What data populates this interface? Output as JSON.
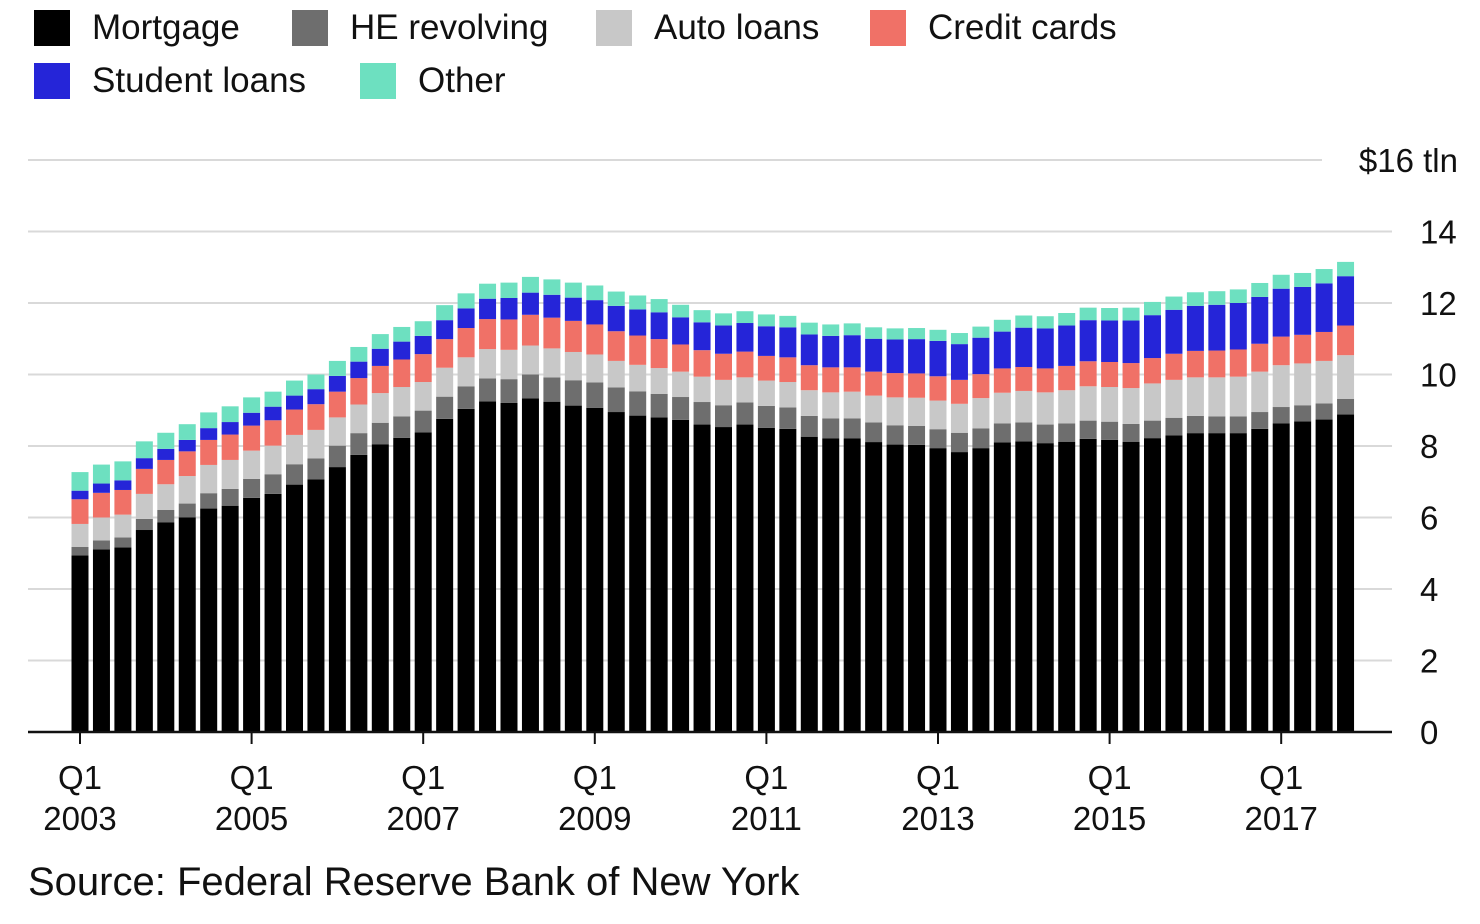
{
  "chart_data": {
    "type": "bar",
    "stacked": true,
    "ylabel_unit": "$16 tln",
    "ylim": [
      0,
      16
    ],
    "yticks": [
      0,
      2,
      4,
      6,
      8,
      10,
      12,
      14,
      16
    ],
    "ytick_labels": [
      "0",
      "2",
      "4",
      "6",
      "8",
      "10",
      "12",
      "14",
      "$16 tln"
    ],
    "xtick_labels": [
      {
        "index": 0,
        "top": "Q1",
        "bottom": "2003"
      },
      {
        "index": 8,
        "top": "Q1",
        "bottom": "2005"
      },
      {
        "index": 16,
        "top": "Q1",
        "bottom": "2007"
      },
      {
        "index": 24,
        "top": "Q1",
        "bottom": "2009"
      },
      {
        "index": 32,
        "top": "Q1",
        "bottom": "2011"
      },
      {
        "index": 40,
        "top": "Q1",
        "bottom": "2013"
      },
      {
        "index": 48,
        "top": "Q1",
        "bottom": "2015"
      },
      {
        "index": 56,
        "top": "Q1",
        "bottom": "2017"
      }
    ],
    "categories": [
      "2003 Q1",
      "2003 Q2",
      "2003 Q3",
      "2003 Q4",
      "2004 Q1",
      "2004 Q2",
      "2004 Q3",
      "2004 Q4",
      "2005 Q1",
      "2005 Q2",
      "2005 Q3",
      "2005 Q4",
      "2006 Q1",
      "2006 Q2",
      "2006 Q3",
      "2006 Q4",
      "2007 Q1",
      "2007 Q2",
      "2007 Q3",
      "2007 Q4",
      "2008 Q1",
      "2008 Q2",
      "2008 Q3",
      "2008 Q4",
      "2009 Q1",
      "2009 Q2",
      "2009 Q3",
      "2009 Q4",
      "2010 Q1",
      "2010 Q2",
      "2010 Q3",
      "2010 Q4",
      "2011 Q1",
      "2011 Q2",
      "2011 Q3",
      "2011 Q4",
      "2012 Q1",
      "2012 Q2",
      "2012 Q3",
      "2012 Q4",
      "2013 Q1",
      "2013 Q2",
      "2013 Q3",
      "2013 Q4",
      "2014 Q1",
      "2014 Q2",
      "2014 Q3",
      "2014 Q4",
      "2015 Q1",
      "2015 Q2",
      "2015 Q3",
      "2015 Q4",
      "2016 Q1",
      "2016 Q2",
      "2016 Q3",
      "2016 Q4",
      "2017 Q1",
      "2017 Q2",
      "2017 Q3",
      "2017 Q4"
    ],
    "series": [
      {
        "name": "Mortgage",
        "color": "#000000",
        "values": [
          4.94,
          5.11,
          5.16,
          5.65,
          5.86,
          6.0,
          6.25,
          6.33,
          6.55,
          6.66,
          6.92,
          7.07,
          7.41,
          7.75,
          8.05,
          8.23,
          8.38,
          8.76,
          9.04,
          9.25,
          9.21,
          9.33,
          9.24,
          9.13,
          9.07,
          8.95,
          8.85,
          8.8,
          8.73,
          8.6,
          8.53,
          8.6,
          8.51,
          8.48,
          8.26,
          8.21,
          8.21,
          8.11,
          8.04,
          8.03,
          7.94,
          7.83,
          7.94,
          8.1,
          8.13,
          8.08,
          8.12,
          8.2,
          8.17,
          8.12,
          8.22,
          8.3,
          8.36,
          8.36,
          8.36,
          8.48,
          8.63,
          8.69,
          8.74,
          8.88
        ]
      },
      {
        "name": "HE revolving",
        "color": "#6e6e6e",
        "values": [
          0.24,
          0.25,
          0.28,
          0.31,
          0.35,
          0.39,
          0.43,
          0.47,
          0.53,
          0.55,
          0.57,
          0.58,
          0.6,
          0.61,
          0.6,
          0.6,
          0.61,
          0.62,
          0.63,
          0.64,
          0.66,
          0.67,
          0.68,
          0.71,
          0.71,
          0.69,
          0.68,
          0.66,
          0.64,
          0.63,
          0.61,
          0.62,
          0.61,
          0.6,
          0.58,
          0.56,
          0.56,
          0.55,
          0.54,
          0.53,
          0.53,
          0.54,
          0.55,
          0.53,
          0.53,
          0.52,
          0.51,
          0.51,
          0.51,
          0.5,
          0.49,
          0.49,
          0.48,
          0.47,
          0.47,
          0.47,
          0.46,
          0.45,
          0.45,
          0.44
        ]
      },
      {
        "name": "Auto loans",
        "color": "#c8c8c8",
        "values": [
          0.64,
          0.64,
          0.64,
          0.7,
          0.72,
          0.77,
          0.79,
          0.81,
          0.79,
          0.8,
          0.82,
          0.8,
          0.79,
          0.8,
          0.83,
          0.82,
          0.8,
          0.81,
          0.81,
          0.82,
          0.82,
          0.81,
          0.81,
          0.79,
          0.78,
          0.74,
          0.74,
          0.72,
          0.71,
          0.71,
          0.71,
          0.7,
          0.71,
          0.71,
          0.72,
          0.73,
          0.75,
          0.75,
          0.78,
          0.79,
          0.8,
          0.81,
          0.85,
          0.86,
          0.88,
          0.9,
          0.93,
          0.96,
          0.97,
          1.0,
          1.04,
          1.06,
          1.08,
          1.09,
          1.11,
          1.13,
          1.17,
          1.17,
          1.19,
          1.22
        ]
      },
      {
        "name": "Credit cards",
        "color": "#f07167",
        "values": [
          0.69,
          0.69,
          0.69,
          0.7,
          0.68,
          0.69,
          0.7,
          0.71,
          0.7,
          0.71,
          0.71,
          0.72,
          0.72,
          0.74,
          0.76,
          0.77,
          0.78,
          0.8,
          0.82,
          0.84,
          0.85,
          0.86,
          0.86,
          0.87,
          0.84,
          0.83,
          0.82,
          0.81,
          0.76,
          0.74,
          0.73,
          0.72,
          0.69,
          0.69,
          0.7,
          0.7,
          0.68,
          0.67,
          0.68,
          0.68,
          0.68,
          0.67,
          0.67,
          0.68,
          0.67,
          0.67,
          0.68,
          0.7,
          0.7,
          0.7,
          0.71,
          0.73,
          0.74,
          0.75,
          0.76,
          0.78,
          0.8,
          0.8,
          0.81,
          0.83
        ]
      },
      {
        "name": "Student loans",
        "color": "#2525d8",
        "values": [
          0.24,
          0.26,
          0.27,
          0.3,
          0.31,
          0.32,
          0.33,
          0.35,
          0.36,
          0.38,
          0.39,
          0.42,
          0.44,
          0.46,
          0.48,
          0.5,
          0.51,
          0.53,
          0.55,
          0.57,
          0.6,
          0.62,
          0.64,
          0.65,
          0.68,
          0.71,
          0.73,
          0.75,
          0.76,
          0.78,
          0.79,
          0.8,
          0.83,
          0.84,
          0.86,
          0.88,
          0.9,
          0.92,
          0.94,
          0.96,
          0.99,
          1.0,
          1.02,
          1.03,
          1.1,
          1.12,
          1.13,
          1.15,
          1.16,
          1.19,
          1.2,
          1.23,
          1.26,
          1.28,
          1.3,
          1.31,
          1.34,
          1.34,
          1.36,
          1.38
        ]
      },
      {
        "name": "Other",
        "color": "#6de0c0",
        "values": [
          0.52,
          0.53,
          0.53,
          0.47,
          0.45,
          0.44,
          0.44,
          0.44,
          0.43,
          0.42,
          0.42,
          0.41,
          0.42,
          0.41,
          0.41,
          0.41,
          0.41,
          0.42,
          0.42,
          0.42,
          0.43,
          0.44,
          0.43,
          0.42,
          0.41,
          0.4,
          0.39,
          0.37,
          0.35,
          0.34,
          0.34,
          0.33,
          0.33,
          0.32,
          0.33,
          0.32,
          0.33,
          0.32,
          0.31,
          0.31,
          0.31,
          0.31,
          0.31,
          0.33,
          0.34,
          0.34,
          0.35,
          0.35,
          0.35,
          0.36,
          0.37,
          0.37,
          0.38,
          0.38,
          0.38,
          0.39,
          0.39,
          0.39,
          0.4,
          0.4
        ]
      }
    ]
  },
  "source": "Source: Federal Reserve Bank of New York"
}
